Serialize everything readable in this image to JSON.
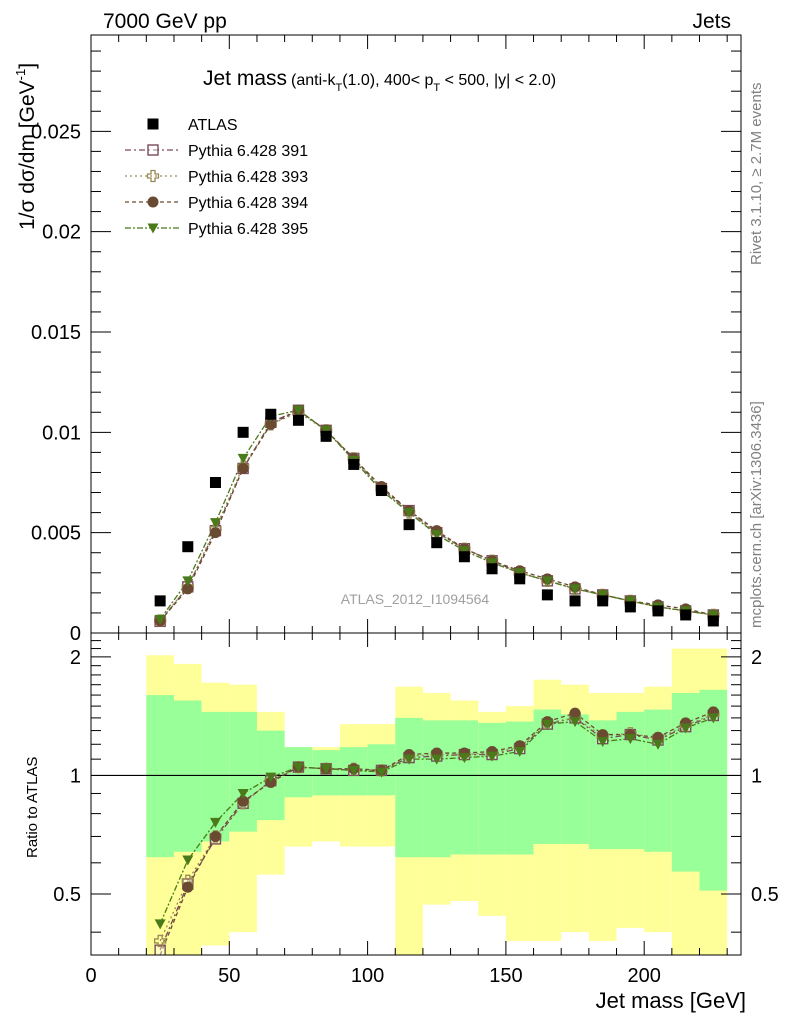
{
  "header": {
    "left": "7000 GeV pp",
    "right": "Jets"
  },
  "title": {
    "main": "Jet mass",
    "detail_a": "(anti-k",
    "detail_sub_t": "T",
    "detail_b": "(1.0), 400< p",
    "detail_sub_t2": "T",
    "detail_c": " < 500, |y| < 2.0)"
  },
  "side_labels": {
    "rivet": "Rivet 3.1.10, ≥ 2.7M events",
    "mcplots": "mcplots.cern.ch [arXiv:1306.3436]"
  },
  "watermark": "ATLAS_2012_I1094564",
  "axes": {
    "y_main_label": "1/σ dσ/dm [GeV",
    "y_main_label_sup": "-1",
    "y_main_label_close": "]",
    "y_ratio_label": "Ratio to ATLAS",
    "x_label": "Jet mass [GeV]",
    "y_main_ticks": [
      "0",
      "0.005",
      "0.01",
      "0.015",
      "0.02",
      "0.025"
    ],
    "y_ratio_ticks": [
      "0.5",
      "1",
      "2"
    ],
    "x_ticks": [
      "0",
      "50",
      "100",
      "150",
      "200"
    ]
  },
  "chart_data": {
    "type": "scatter",
    "x_range": [
      0,
      235
    ],
    "main_ylim": [
      0,
      0.0298
    ],
    "ratio_ylim": [
      0.35,
      2.3
    ],
    "ratio_scale": "log",
    "bins": [
      [
        20,
        30
      ],
      [
        30,
        40
      ],
      [
        40,
        50
      ],
      [
        50,
        60
      ],
      [
        60,
        70
      ],
      [
        70,
        80
      ],
      [
        80,
        90
      ],
      [
        90,
        100
      ],
      [
        100,
        110
      ],
      [
        110,
        120
      ],
      [
        120,
        130
      ],
      [
        130,
        140
      ],
      [
        140,
        150
      ],
      [
        150,
        160
      ],
      [
        160,
        170
      ],
      [
        170,
        180
      ],
      [
        180,
        190
      ],
      [
        190,
        200
      ],
      [
        200,
        210
      ],
      [
        210,
        220
      ],
      [
        220,
        230
      ]
    ],
    "x": [
      25,
      35,
      45,
      55,
      65,
      75,
      85,
      95,
      105,
      115,
      125,
      135,
      145,
      155,
      165,
      175,
      185,
      195,
      205,
      215,
      225
    ],
    "atlas": [
      0.0016,
      0.0043,
      0.0075,
      0.01,
      0.0109,
      0.0106,
      0.0098,
      0.0084,
      0.0071,
      0.0054,
      0.0045,
      0.0038,
      0.0032,
      0.0027,
      0.0019,
      0.0016,
      0.0016,
      0.0013,
      0.0011,
      0.0009,
      0.0006
    ],
    "band_inner": [
      [
        0.62,
        1.6
      ],
      [
        0.64,
        1.55
      ],
      [
        0.68,
        1.45
      ],
      [
        0.72,
        1.45
      ],
      [
        0.77,
        1.3
      ],
      [
        0.88,
        1.18
      ],
      [
        0.89,
        1.16
      ],
      [
        0.89,
        1.18
      ],
      [
        0.89,
        1.2
      ],
      [
        0.62,
        1.4
      ],
      [
        0.62,
        1.38
      ],
      [
        0.63,
        1.38
      ],
      [
        0.63,
        1.36
      ],
      [
        0.63,
        1.37
      ],
      [
        0.67,
        1.47
      ],
      [
        0.67,
        1.43
      ],
      [
        0.65,
        1.38
      ],
      [
        0.65,
        1.45
      ],
      [
        0.64,
        1.47
      ],
      [
        0.57,
        1.62
      ],
      [
        0.51,
        1.65
      ]
    ],
    "band_outer": [
      [
        0.25,
        2.02
      ],
      [
        0.33,
        1.92
      ],
      [
        0.37,
        1.72
      ],
      [
        0.4,
        1.7
      ],
      [
        0.56,
        1.45
      ],
      [
        0.66,
        1.18
      ],
      [
        0.68,
        1.18
      ],
      [
        0.66,
        1.35
      ],
      [
        0.66,
        1.35
      ],
      [
        0.25,
        1.68
      ],
      [
        0.47,
        1.62
      ],
      [
        0.48,
        1.55
      ],
      [
        0.44,
        1.45
      ],
      [
        0.38,
        1.5
      ],
      [
        0.38,
        1.75
      ],
      [
        0.4,
        1.7
      ],
      [
        0.38,
        1.62
      ],
      [
        0.41,
        1.62
      ],
      [
        0.4,
        1.68
      ],
      [
        0.3,
        2.1
      ],
      [
        0.25,
        2.1
      ]
    ],
    "series": [
      {
        "name": "ATLAS",
        "color": "#000000",
        "marker": "filled-square"
      },
      {
        "name": "Pythia 6.428 391",
        "color": "#7a4a5a",
        "marker": "open-square",
        "dash": "6,3,2,3",
        "values": [
          0.00058,
          0.0023,
          0.0051,
          0.0082,
          0.0105,
          0.0111,
          0.0101,
          0.0087,
          0.0072,
          0.0061,
          0.005,
          0.0042,
          0.0036,
          0.003,
          0.0026,
          0.0022,
          0.0019,
          0.0016,
          0.0013,
          0.0011,
          0.0009
        ],
        "ratio": [
          0.36,
          0.53,
          0.69,
          0.85,
          0.97,
          1.05,
          1.04,
          1.03,
          1.03,
          1.11,
          1.12,
          1.13,
          1.13,
          1.17,
          1.35,
          1.4,
          1.24,
          1.27,
          1.23,
          1.33,
          1.42
        ]
      },
      {
        "name": "Pythia 6.428 393",
        "color": "#9a8a5a",
        "marker": "open-cross",
        "dash": "2,3",
        "values": [
          0.00062,
          0.0023,
          0.0052,
          0.0083,
          0.0104,
          0.011,
          0.0101,
          0.0087,
          0.0072,
          0.006,
          0.005,
          0.0042,
          0.0036,
          0.003,
          0.0026,
          0.0022,
          0.0019,
          0.0016,
          0.0013,
          0.0011,
          0.0009
        ],
        "ratio": [
          0.38,
          0.54,
          0.7,
          0.85,
          0.97,
          1.05,
          1.04,
          1.04,
          1.03,
          1.12,
          1.13,
          1.13,
          1.14,
          1.18,
          1.36,
          1.4,
          1.26,
          1.28,
          1.24,
          1.34,
          1.43
        ]
      },
      {
        "name": "Pythia 6.428 394",
        "color": "#6a4a30",
        "marker": "filled-circle",
        "dash": "4,3",
        "values": [
          0.0006,
          0.0022,
          0.005,
          0.0082,
          0.0104,
          0.0111,
          0.0101,
          0.0087,
          0.0073,
          0.0061,
          0.0051,
          0.0042,
          0.0036,
          0.0031,
          0.0027,
          0.0023,
          0.0019,
          0.0016,
          0.0014,
          0.0012,
          0.0009
        ],
        "ratio": [
          0.35,
          0.52,
          0.7,
          0.86,
          0.96,
          1.05,
          1.04,
          1.04,
          1.03,
          1.13,
          1.14,
          1.14,
          1.15,
          1.19,
          1.37,
          1.44,
          1.27,
          1.27,
          1.25,
          1.36,
          1.45
        ]
      },
      {
        "name": "Pythia 6.428 395",
        "color": "#4a7a1a",
        "marker": "filled-triangle-down",
        "dash": "6,2,2,2",
        "values": [
          0.00068,
          0.0026,
          0.0055,
          0.0087,
          0.0108,
          0.0111,
          0.0101,
          0.0086,
          0.0071,
          0.006,
          0.0049,
          0.0041,
          0.0035,
          0.003,
          0.0026,
          0.0022,
          0.0019,
          0.0016,
          0.0013,
          0.0011,
          0.0009
        ],
        "ratio": [
          0.42,
          0.61,
          0.76,
          0.9,
          0.99,
          1.05,
          1.04,
          1.03,
          1.02,
          1.1,
          1.1,
          1.11,
          1.12,
          1.15,
          1.35,
          1.37,
          1.22,
          1.24,
          1.2,
          1.32,
          1.4
        ]
      }
    ]
  }
}
